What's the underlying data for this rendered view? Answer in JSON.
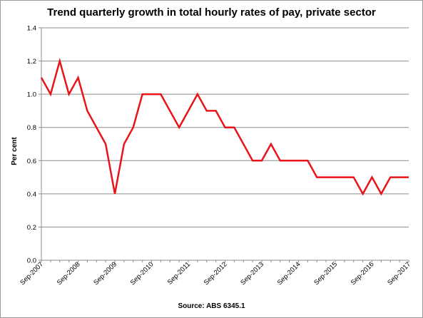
{
  "chart_data": {
    "type": "line",
    "title": "Trend quarterly growth in total hourly rates of pay, private sector",
    "xlabel": "",
    "ylabel": "Per cent",
    "source": "Source: ABS 6345.1",
    "ylim": [
      0,
      1.4
    ],
    "y_ticks": [
      "0.0",
      "0.2",
      "0.4",
      "0.6",
      "0.8",
      "1.0",
      "1.2",
      "1.4"
    ],
    "y_tick_values": [
      0,
      0.2,
      0.4,
      0.6,
      0.8,
      1.0,
      1.2,
      1.4
    ],
    "x_tick_labels": [
      "Sep-2007",
      "Sep-2008",
      "Sep-2009",
      "Sep-2010",
      "Sep-2011",
      "Sep-2012",
      "Sep-2013",
      "Sep-2014",
      "Sep-2015",
      "Sep-2016",
      "Sep-2017"
    ],
    "grid": "horizontal",
    "legend": "none",
    "colors": {
      "series": "#e8141a",
      "grid": "#8c8c8c",
      "axis": "#8c8c8c"
    },
    "x": [
      "Sep-2007",
      "Dec-2007",
      "Mar-2008",
      "Jun-2008",
      "Sep-2008",
      "Dec-2008",
      "Mar-2009",
      "Jun-2009",
      "Sep-2009",
      "Dec-2009",
      "Mar-2010",
      "Jun-2010",
      "Sep-2010",
      "Dec-2010",
      "Mar-2011",
      "Jun-2011",
      "Sep-2011",
      "Dec-2011",
      "Mar-2012",
      "Jun-2012",
      "Sep-2012",
      "Dec-2012",
      "Mar-2013",
      "Jun-2013",
      "Sep-2013",
      "Dec-2013",
      "Mar-2014",
      "Jun-2014",
      "Sep-2014",
      "Dec-2014",
      "Mar-2015",
      "Jun-2015",
      "Sep-2015",
      "Dec-2015",
      "Mar-2016",
      "Jun-2016",
      "Sep-2016",
      "Dec-2016",
      "Mar-2017",
      "Jun-2017",
      "Sep-2017"
    ],
    "values": [
      1.1,
      1.0,
      1.2,
      1.0,
      1.1,
      0.9,
      0.8,
      0.7,
      0.4,
      0.7,
      0.8,
      1.0,
      1.0,
      1.0,
      0.9,
      0.8,
      0.9,
      1.0,
      0.9,
      0.9,
      0.8,
      0.8,
      0.7,
      0.6,
      0.6,
      0.7,
      0.6,
      0.6,
      0.6,
      0.6,
      0.5,
      0.5,
      0.5,
      0.5,
      0.5,
      0.4,
      0.5,
      0.4,
      0.5,
      0.5,
      0.5
    ]
  }
}
